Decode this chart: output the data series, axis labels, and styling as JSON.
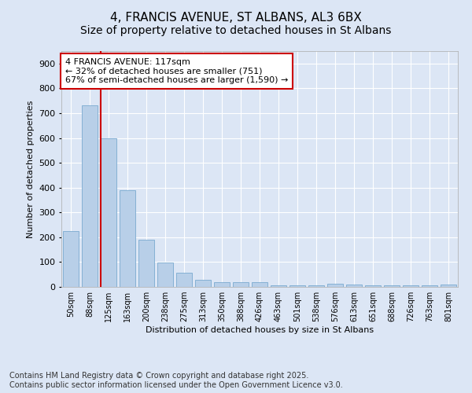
{
  "title": "4, FRANCIS AVENUE, ST ALBANS, AL3 6BX",
  "subtitle": "Size of property relative to detached houses in St Albans",
  "xlabel": "Distribution of detached houses by size in St Albans",
  "ylabel": "Number of detached properties",
  "categories": [
    "50sqm",
    "88sqm",
    "125sqm",
    "163sqm",
    "200sqm",
    "238sqm",
    "275sqm",
    "313sqm",
    "350sqm",
    "388sqm",
    "426sqm",
    "463sqm",
    "501sqm",
    "538sqm",
    "576sqm",
    "613sqm",
    "651sqm",
    "688sqm",
    "726sqm",
    "763sqm",
    "801sqm"
  ],
  "values": [
    225,
    730,
    600,
    390,
    190,
    98,
    58,
    28,
    20,
    18,
    18,
    5,
    5,
    5,
    12,
    10,
    5,
    5,
    5,
    5,
    8
  ],
  "bar_color": "#b8cfe8",
  "bar_edge_color": "#7aaad0",
  "vline_color": "#cc0000",
  "vline_x_index": 2,
  "annotation_text_line1": "4 FRANCIS AVENUE: 117sqm",
  "annotation_text_line2": "← 32% of detached houses are smaller (751)",
  "annotation_text_line3": "67% of semi-detached houses are larger (1,590) →",
  "annotation_box_color": "#ffffff",
  "annotation_box_edge": "#cc0000",
  "ylim": [
    0,
    950
  ],
  "yticks": [
    0,
    100,
    200,
    300,
    400,
    500,
    600,
    700,
    800,
    900
  ],
  "background_color": "#dce6f5",
  "grid_color": "#ffffff",
  "footer": "Contains HM Land Registry data © Crown copyright and database right 2025.\nContains public sector information licensed under the Open Government Licence v3.0.",
  "title_fontsize": 11,
  "label_fontsize": 8,
  "tick_fontsize": 7,
  "footer_fontsize": 7,
  "annotation_fontsize": 8
}
